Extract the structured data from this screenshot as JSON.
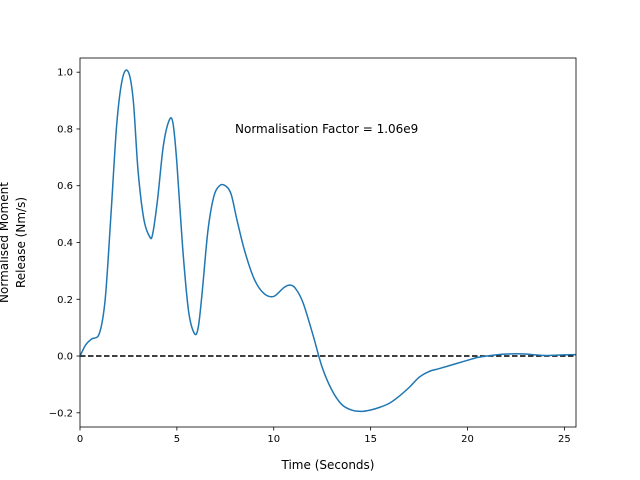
{
  "chart_data": {
    "type": "line",
    "title": "",
    "xlabel": "Time (Seconds)",
    "ylabel_lines": [
      "Normalised Moment",
      "Release (Nm/s)"
    ],
    "xlim": [
      0,
      25.6
    ],
    "ylim": [
      -0.25,
      1.05
    ],
    "x_ticks": [
      0,
      5,
      10,
      15,
      20,
      25
    ],
    "x_tick_labels": [
      "0",
      "5",
      "10",
      "15",
      "20",
      "25"
    ],
    "y_ticks": [
      -0.2,
      0.0,
      0.2,
      0.4,
      0.6,
      0.8,
      1.0
    ],
    "y_tick_labels": [
      "−0.2",
      "0.0",
      "0.2",
      "0.4",
      "0.6",
      "0.8",
      "1.0"
    ],
    "grid": false,
    "annotation": {
      "text": "Normalisation Factor = 1.06e9",
      "x": 8.0,
      "y": 0.8
    },
    "reference_line": {
      "y": 0.0,
      "style": "dashed",
      "color": "#000000"
    },
    "series": [
      {
        "color": "#1f77b4",
        "x": [
          0.0,
          0.3,
          0.6,
          1.0,
          1.3,
          1.6,
          1.9,
          2.2,
          2.5,
          2.75,
          3.0,
          3.3,
          3.6,
          3.75,
          4.0,
          4.3,
          4.6,
          4.8,
          5.0,
          5.3,
          5.6,
          5.9,
          6.1,
          6.3,
          6.6,
          6.9,
          7.2,
          7.5,
          7.8,
          8.1,
          8.5,
          9.0,
          9.5,
          10.0,
          10.5,
          10.8,
          11.1,
          11.5,
          12.0,
          12.5,
          13.0,
          13.5,
          14.0,
          14.5,
          15.0,
          15.5,
          16.0,
          16.5,
          17.0,
          17.5,
          18.0,
          18.5,
          19.0,
          19.5,
          20.0,
          20.5,
          21.0,
          21.5,
          22.0,
          22.5,
          23.0,
          23.5,
          24.0,
          24.5,
          25.0,
          25.6
        ],
        "y": [
          0.0,
          0.04,
          0.06,
          0.08,
          0.2,
          0.5,
          0.82,
          0.98,
          1.0,
          0.9,
          0.65,
          0.48,
          0.42,
          0.43,
          0.55,
          0.74,
          0.83,
          0.82,
          0.68,
          0.38,
          0.16,
          0.08,
          0.1,
          0.22,
          0.44,
          0.56,
          0.6,
          0.6,
          0.57,
          0.48,
          0.37,
          0.27,
          0.22,
          0.21,
          0.24,
          0.25,
          0.24,
          0.19,
          0.08,
          -0.04,
          -0.12,
          -0.17,
          -0.19,
          -0.195,
          -0.19,
          -0.18,
          -0.165,
          -0.14,
          -0.11,
          -0.075,
          -0.055,
          -0.045,
          -0.035,
          -0.025,
          -0.015,
          -0.005,
          0.0,
          0.004,
          0.007,
          0.008,
          0.007,
          0.004,
          0.002,
          0.003,
          0.004,
          0.005
        ]
      }
    ]
  }
}
